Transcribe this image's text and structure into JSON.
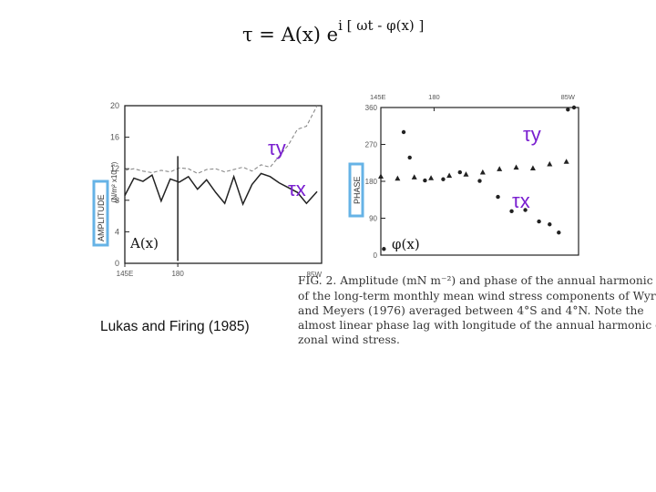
{
  "slide": {
    "equation_lhs": "τ = A(x) e",
    "equation_exponent": "i [ ωt - φ(x) ]",
    "credit": "Lukas and Firing (1985)",
    "colors": {
      "tau_label": "#7a1fd0",
      "highlight_box": "#66b3e6",
      "plot_ink": "#222222",
      "dashed_line": "#8a8a8a"
    }
  },
  "left_panel_labels": {
    "tau_y": "τy",
    "tau_x": "τx",
    "amplitude_label": "A(x)",
    "ylabel_box": "AMPLITUDE",
    "ylabel_units": "(N/m² x10⁻³)",
    "ytick_labels": [
      "20",
      "16",
      "12",
      "8",
      "4",
      "0"
    ],
    "xtick_labels": [
      "145E",
      "180"
    ],
    "xtick_labels_bottom": [
      "85W"
    ]
  },
  "right_panel_labels": {
    "tau_y": "τy",
    "tau_x": "τx",
    "phase_label": "φ(x)",
    "ylabel_box": "PHASE",
    "ytick_labels": [
      "360",
      "270",
      "180",
      "90",
      "0"
    ],
    "xtick_labels": [
      "145E",
      "180",
      "85W"
    ]
  },
  "caption": {
    "lines": [
      "FIG. 2. Amplitude (mN m⁻²) and phase of the annual harmonic",
      "of the long-term monthly mean wind stress components of Wyrtki",
      "and Meyers (1976) averaged between 4°S and 4°N. Note the",
      "almost linear phase lag with longitude of the annual harmonic of",
      "zonal wind stress."
    ]
  },
  "chart_data": [
    {
      "type": "line",
      "title": "",
      "xlabel": "",
      "ylabel": "AMPLITUDE (N/m² x10⁻³)",
      "x_tick_labels": [
        "145E",
        "180",
        "85W"
      ],
      "ylim": [
        0,
        20
      ],
      "yticks": [
        0,
        4,
        8,
        12,
        16,
        20
      ],
      "grid": false,
      "series": [
        {
          "name": "τy",
          "style": "dashed",
          "x": [
            145,
            151,
            157,
            163,
            169,
            175,
            181,
            187,
            193,
            199,
            205,
            211,
            217,
            223,
            229,
            235,
            241,
            247,
            253,
            259,
            265,
            272
          ],
          "values": [
            11.8,
            12.0,
            11.7,
            11.5,
            11.8,
            11.6,
            12.1,
            12.0,
            11.4,
            11.9,
            12.0,
            11.6,
            11.9,
            12.2,
            11.7,
            12.5,
            12.2,
            13.6,
            15.0,
            17.0,
            17.4,
            20.0
          ]
        },
        {
          "name": "τx",
          "style": "solid",
          "x": [
            145,
            151,
            157,
            163,
            169,
            175,
            181,
            187,
            193,
            199,
            205,
            211,
            217,
            223,
            229,
            235,
            241,
            247,
            253,
            259,
            265,
            272
          ],
          "values": [
            8.6,
            10.8,
            10.4,
            11.2,
            7.9,
            10.7,
            10.3,
            11.0,
            9.4,
            10.6,
            9.0,
            7.6,
            11.0,
            7.5,
            10.0,
            11.4,
            11.0,
            10.2,
            9.6,
            9.0,
            7.6,
            9.1
          ]
        },
        {
          "name": "",
          "style": "solid",
          "x": [
            180,
            180
          ],
          "values": [
            0.3,
            13.6
          ]
        }
      ]
    },
    {
      "type": "scatter",
      "title": "",
      "xlabel": "",
      "ylabel": "PHASE",
      "x_tick_labels": [
        "145E",
        "180",
        "85W"
      ],
      "ylim": [
        0,
        360
      ],
      "yticks": [
        0,
        90,
        180,
        270,
        360
      ],
      "grid": false,
      "series": [
        {
          "name": "τy",
          "marker": "triangle",
          "x": [
            145,
            156,
            167,
            178,
            190,
            201,
            212,
            223,
            234,
            245,
            256,
            267
          ],
          "values": [
            192,
            187,
            190,
            188,
            194,
            197,
            202,
            210,
            214,
            212,
            222,
            228
          ]
        },
        {
          "name": "τx",
          "marker": "circle",
          "x": [
            147,
            160,
            164,
            174,
            186,
            197,
            210,
            222,
            231,
            240,
            249,
            256,
            262,
            268,
            272
          ],
          "values": [
            15,
            300,
            238,
            182,
            185,
            202,
            181,
            142,
            107,
            110,
            82,
            75,
            55,
            355,
            360
          ]
        }
      ]
    }
  ]
}
